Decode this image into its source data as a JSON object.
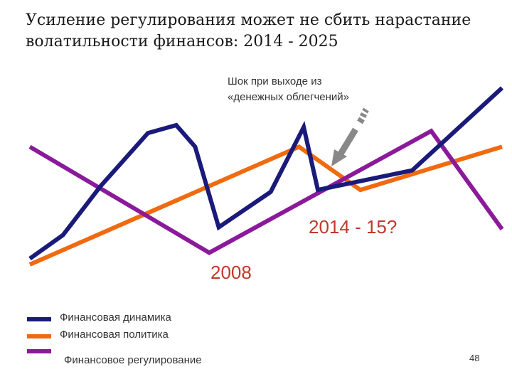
{
  "slide": {
    "title_line1": "Усиление регулирования может не сбить нарастание",
    "title_line2": "волатильности финансов: 2014 - 2025",
    "note_line1": "Шок при выходе из",
    "note_line2": "«денежных облегчений»",
    "label_2014": "2014 - 15?",
    "label_2008": "2008",
    "page_number": "48"
  },
  "chart_data": {
    "type": "line",
    "title": "",
    "xlabel": "",
    "ylabel": "",
    "grid": false,
    "legend_position": "bottom-left",
    "colors": {
      "dynamics": "#1a1a7a",
      "policy": "#f06a0f",
      "regulation": "#8b1a9a",
      "arrow": "#888888",
      "labels": "#c0392b"
    },
    "series": [
      {
        "name": "Финансовая динамика",
        "color": "#1a1a7a",
        "points": [
          [
            0,
            0.03
          ],
          [
            0.07,
            0.15
          ],
          [
            0.15,
            0.4
          ],
          [
            0.25,
            0.67
          ],
          [
            0.31,
            0.71
          ],
          [
            0.35,
            0.6
          ],
          [
            0.4,
            0.19
          ],
          [
            0.51,
            0.37
          ],
          [
            0.58,
            0.7
          ],
          [
            0.61,
            0.38
          ],
          [
            0.81,
            0.48
          ],
          [
            1,
            0.9
          ]
        ]
      },
      {
        "name": "Финансовая политика",
        "color": "#f06a0f",
        "points": [
          [
            0,
            0.0
          ],
          [
            0.57,
            0.6
          ],
          [
            0.7,
            0.38
          ],
          [
            1,
            0.6
          ]
        ]
      },
      {
        "name": "Финансовое регулирование",
        "color": "#8b1a9a",
        "points": [
          [
            0,
            0.6
          ],
          [
            0.38,
            0.06
          ],
          [
            0.85,
            0.68
          ],
          [
            1,
            0.18
          ]
        ]
      }
    ]
  }
}
